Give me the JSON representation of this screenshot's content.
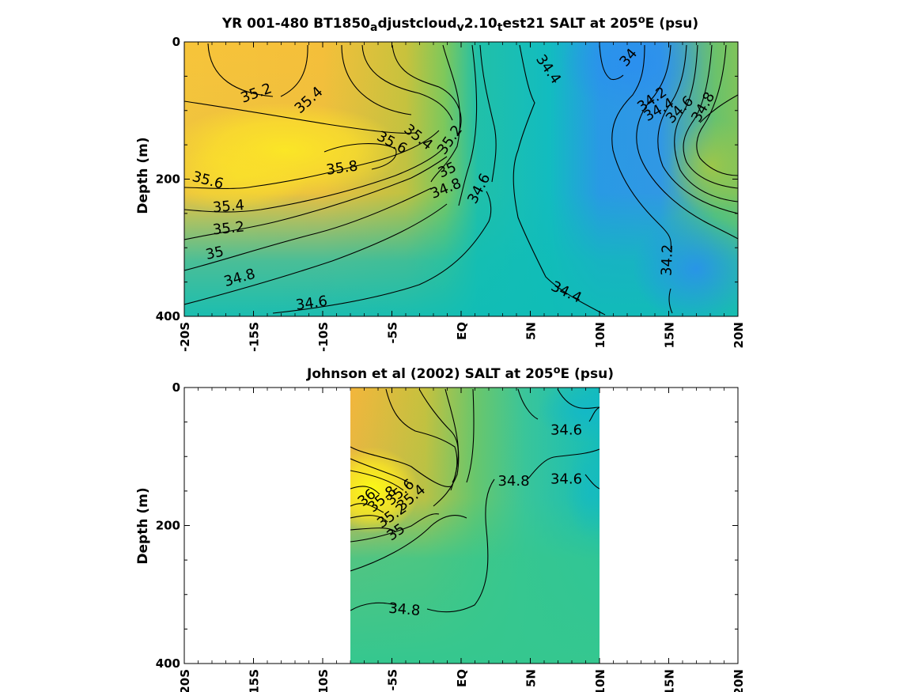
{
  "chart_data": [
    {
      "type": "heatmap",
      "title_main": "YR 001-480 BT1850",
      "title_parts": [
        {
          "text": "YR 001-480 BT1850",
          "style": "normal"
        },
        {
          "text": "a",
          "style": "sub"
        },
        {
          "text": "djustcloud",
          "style": "normal"
        },
        {
          "text": "v",
          "style": "sub"
        },
        {
          "text": "2.10",
          "style": "normal"
        },
        {
          "text": "t",
          "style": "sub"
        },
        {
          "text": "est21 SALT at 205",
          "style": "normal"
        },
        {
          "text": "o",
          "style": "sup"
        },
        {
          "text": "E (psu)",
          "style": "normal"
        }
      ],
      "ylabel": "Depth (m)",
      "xlim": [
        -20,
        20
      ],
      "ylim": [
        0,
        400
      ],
      "x_tick_labels": [
        "-20S",
        "-15S",
        "-10S",
        "-5S",
        "EQ",
        "5N",
        "10N",
        "15N",
        "20N"
      ],
      "x_tick_values": [
        -20,
        -15,
        -10,
        -5,
        0,
        5,
        10,
        15,
        20
      ],
      "y_tick_labels": [
        "0",
        "200",
        "400"
      ],
      "y_tick_values": [
        0,
        200,
        400
      ],
      "data_extent": [
        -20,
        20
      ],
      "colormap": {
        "low": "#2a8ef0",
        "mid": "#10bdb6",
        "high": "#fbe023"
      },
      "contour_labels": [
        {
          "text": "35.2",
          "lat": -14.8,
          "depth": 75,
          "rot": -20
        },
        {
          "text": "35.4",
          "lat": -11.0,
          "depth": 85,
          "rot": -42
        },
        {
          "text": "35.6",
          "lat": -5.0,
          "depth": 147,
          "rot": 28
        },
        {
          "text": "35.4",
          "lat": -3.1,
          "depth": 139,
          "rot": 38
        },
        {
          "text": "35.2",
          "lat": -0.8,
          "depth": 143,
          "rot": -55
        },
        {
          "text": "35.8",
          "lat": -8.6,
          "depth": 184,
          "rot": -8
        },
        {
          "text": "35.6",
          "lat": -18.3,
          "depth": 202,
          "rot": 15
        },
        {
          "text": "35",
          "lat": -1.0,
          "depth": 187,
          "rot": -25
        },
        {
          "text": "34.8",
          "lat": -1.1,
          "depth": 214,
          "rot": -22
        },
        {
          "text": "34.6",
          "lat": 1.3,
          "depth": 214,
          "rot": -62
        },
        {
          "text": "35.4",
          "lat": -16.8,
          "depth": 240,
          "rot": -5
        },
        {
          "text": "35.2",
          "lat": -16.8,
          "depth": 272,
          "rot": -6
        },
        {
          "text": "35",
          "lat": -17.8,
          "depth": 308,
          "rot": -12
        },
        {
          "text": "34.8",
          "lat": -16.0,
          "depth": 344,
          "rot": -16
        },
        {
          "text": "34.6",
          "lat": -10.8,
          "depth": 381,
          "rot": -8
        },
        {
          "text": "34.4",
          "lat": 6.3,
          "depth": 40,
          "rot": 55
        },
        {
          "text": "34",
          "lat": 12.1,
          "depth": 23,
          "rot": -50
        },
        {
          "text": "34.2",
          "lat": 13.8,
          "depth": 84,
          "rot": -35
        },
        {
          "text": "34.4",
          "lat": 14.3,
          "depth": 99,
          "rot": -30
        },
        {
          "text": "34.6",
          "lat": 15.8,
          "depth": 99,
          "rot": -45
        },
        {
          "text": "34.8",
          "lat": 17.5,
          "depth": 95,
          "rot": -60
        },
        {
          "text": "34.2",
          "lat": 14.9,
          "depth": 318,
          "rot": -88
        },
        {
          "text": "34.4",
          "lat": 7.6,
          "depth": 365,
          "rot": 25
        }
      ]
    },
    {
      "type": "heatmap",
      "title_parts": [
        {
          "text": "Johnson et al (2002) SALT at 205",
          "style": "normal"
        },
        {
          "text": "o",
          "style": "sup"
        },
        {
          "text": "E (psu)",
          "style": "normal"
        }
      ],
      "ylabel": "Depth (m)",
      "xlim": [
        -20,
        20
      ],
      "ylim": [
        0,
        400
      ],
      "x_tick_labels": [
        "-20S",
        "-15S",
        "-10S",
        "-5S",
        "EQ",
        "5N",
        "10N",
        "15N",
        "20N"
      ],
      "x_tick_values": [
        -20,
        -15,
        -10,
        -5,
        0,
        5,
        10,
        15,
        20
      ],
      "y_tick_labels": [
        "0",
        "200",
        "400"
      ],
      "y_tick_values": [
        0,
        200,
        400
      ],
      "data_extent": [
        -8,
        10
      ],
      "colormap": {
        "low": "#10bdb6",
        "mid": "#41c88a",
        "high": "#fbf41a"
      },
      "contour_labels": [
        {
          "text": "34.6",
          "lat": 7.6,
          "depth": 62,
          "rot": 0
        },
        {
          "text": "34.8",
          "lat": 3.8,
          "depth": 136,
          "rot": 0
        },
        {
          "text": "34.6",
          "lat": 7.6,
          "depth": 133,
          "rot": 0
        },
        {
          "text": "36",
          "lat": -6.8,
          "depth": 160,
          "rot": -40
        },
        {
          "text": "35.8",
          "lat": -5.7,
          "depth": 162,
          "rot": -40
        },
        {
          "text": "35.6",
          "lat": -4.4,
          "depth": 152,
          "rot": -40
        },
        {
          "text": "35.4",
          "lat": -3.6,
          "depth": 160,
          "rot": -40
        },
        {
          "text": "35.2",
          "lat": -5.0,
          "depth": 186,
          "rot": -35
        },
        {
          "text": "35",
          "lat": -4.7,
          "depth": 210,
          "rot": -35
        },
        {
          "text": "34.8",
          "lat": -4.1,
          "depth": 322,
          "rot": 5
        }
      ]
    }
  ]
}
